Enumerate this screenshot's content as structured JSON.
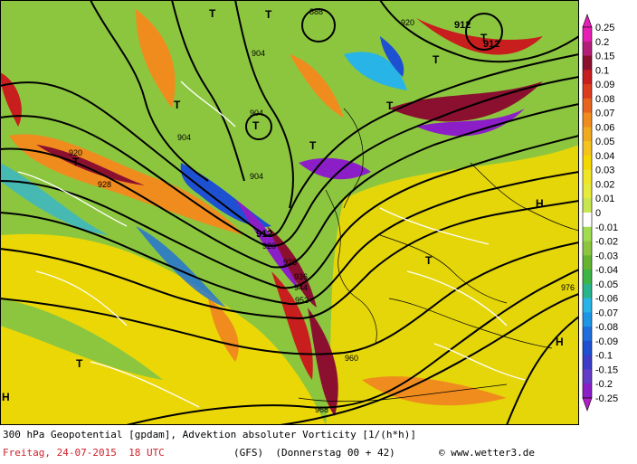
{
  "map": {
    "contour_labels": [
      {
        "text": "888"
      },
      {
        "text": "920"
      },
      {
        "text": "912"
      },
      {
        "text": "912"
      },
      {
        "text": "904"
      },
      {
        "text": "904"
      },
      {
        "text": "904"
      },
      {
        "text": "904"
      },
      {
        "text": "920"
      },
      {
        "text": "928"
      },
      {
        "text": "912"
      },
      {
        "text": "920"
      },
      {
        "text": "928"
      },
      {
        "text": "936"
      },
      {
        "text": "944"
      },
      {
        "text": "952"
      },
      {
        "text": "960"
      },
      {
        "text": "968"
      },
      {
        "text": "976"
      }
    ],
    "symbols": [
      {
        "kind": "T",
        "text": "T"
      },
      {
        "kind": "T",
        "text": "T"
      },
      {
        "kind": "T",
        "text": "T"
      },
      {
        "kind": "T",
        "text": "T"
      },
      {
        "kind": "T",
        "text": "T"
      },
      {
        "kind": "T",
        "text": "T"
      },
      {
        "kind": "T",
        "text": "T"
      },
      {
        "kind": "T",
        "text": "T"
      },
      {
        "kind": "T",
        "text": "T"
      },
      {
        "kind": "T",
        "text": "T"
      },
      {
        "kind": "H",
        "text": "H"
      },
      {
        "kind": "H",
        "text": "H"
      },
      {
        "kind": "H",
        "text": "H"
      }
    ],
    "colors": {
      "land_yellow": "#f5d800",
      "green": "#8cc63f",
      "orange": "#f08c1e",
      "red": "#c81e1e",
      "darkred": "#8b1030",
      "blue": "#1e50d2",
      "purple": "#8c1ec8",
      "cyan": "#28b4e6",
      "magenta": "#e61eb4"
    }
  },
  "legend": {
    "ticks": [
      "0.25",
      "0.2",
      "0.15",
      "0.1",
      "0.09",
      "0.08",
      "0.07",
      "0.06",
      "0.05",
      "0.04",
      "0.03",
      "0.02",
      "0.01",
      "0",
      "-0.01",
      "-0.02",
      "-0.03",
      "-0.04",
      "-0.05",
      "-0.06",
      "-0.07",
      "-0.08",
      "-0.09",
      "-0.1",
      "-0.15",
      "-0.2",
      "-0.25"
    ],
    "colors": [
      "#e61eb4",
      "#b41e78",
      "#8b1030",
      "#c81e1e",
      "#dc3c1e",
      "#e6641e",
      "#f08c1e",
      "#f0aa1e",
      "#f5c31e",
      "#f5d800",
      "#f0e628",
      "#e6eb3c",
      "#c8e650",
      "#ffffff",
      "#a0dc50",
      "#8cc63f",
      "#64b432",
      "#3cb446",
      "#28b48c",
      "#28b4e6",
      "#1e96e6",
      "#1e6edc",
      "#1e50d2",
      "#3c3cc8",
      "#643cc8",
      "#8c1ec8",
      "#b41ec8"
    ]
  },
  "footer": {
    "title": "300 hPa Geopotential [gpdam], Advektion absoluter Vorticity [1/(h*h)]",
    "date": "Freitag, 24-07-2015  18 UTC",
    "run": "(GFS)  (Donnerstag 00 + 42)",
    "credit": "© www.wetter3.de"
  }
}
